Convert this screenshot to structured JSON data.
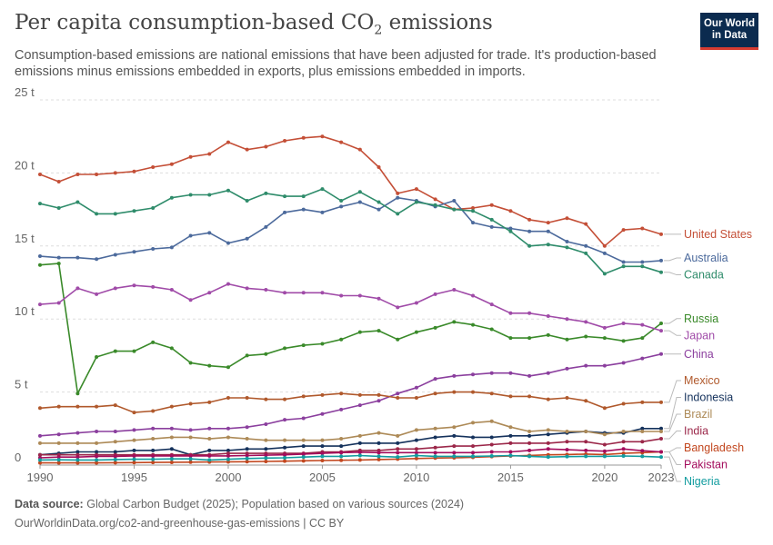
{
  "header": {
    "title_main": "Per capita consumption-based CO",
    "title_sub": "2",
    "title_end": " emissions",
    "subtitle": "Consumption-based emissions are national emissions that have been adjusted for trade. It's production-based emissions minus emissions embedded in exports, plus emissions embedded in imports.",
    "logo_line1": "Our World",
    "logo_line2": "in Data"
  },
  "footer": {
    "source_label": "Data source:",
    "source_text": "Global Carbon Budget (2025); Population based on various sources (2024)",
    "link_text": "OurWorldinData.org/co2-and-greenhouse-gas-emissions | CC BY"
  },
  "chart_data": {
    "type": "line",
    "title": "Per capita consumption-based CO2 emissions",
    "xlabel": "",
    "ylabel": "",
    "xlim": [
      1990,
      2023
    ],
    "ylim": [
      0,
      25
    ],
    "x_ticks": [
      1990,
      1995,
      2000,
      2005,
      2010,
      2015,
      2020,
      2023
    ],
    "y_ticks": [
      {
        "value": 0,
        "label": "0"
      },
      {
        "value": 5,
        "label": "5 t"
      },
      {
        "value": 10,
        "label": "10 t"
      },
      {
        "value": 15,
        "label": "15 t"
      },
      {
        "value": 20,
        "label": "20 t"
      },
      {
        "value": 25,
        "label": "25 t"
      }
    ],
    "grid": true,
    "legend": "labels at right end of lines",
    "x": [
      1990,
      1991,
      1992,
      1993,
      1994,
      1995,
      1996,
      1997,
      1998,
      1999,
      2000,
      2001,
      2002,
      2003,
      2004,
      2005,
      2006,
      2007,
      2008,
      2009,
      2010,
      2011,
      2012,
      2013,
      2014,
      2015,
      2016,
      2017,
      2018,
      2019,
      2020,
      2021,
      2022,
      2023
    ],
    "series": [
      {
        "name": "United States",
        "color": "#c44f37",
        "values": [
          19.9,
          19.4,
          19.9,
          19.9,
          20.0,
          20.1,
          20.4,
          20.6,
          21.1,
          21.3,
          22.1,
          21.6,
          21.8,
          22.2,
          22.4,
          22.5,
          22.1,
          21.6,
          20.4,
          18.6,
          18.9,
          18.2,
          17.5,
          17.6,
          17.8,
          17.4,
          16.8,
          16.6,
          16.9,
          16.5,
          15.0,
          16.1,
          16.2,
          15.8
        ]
      },
      {
        "name": "Australia",
        "color": "#4c6a9c",
        "values": [
          14.3,
          14.2,
          14.2,
          14.1,
          14.4,
          14.6,
          14.8,
          14.9,
          15.7,
          15.9,
          15.2,
          15.5,
          16.3,
          17.3,
          17.5,
          17.3,
          17.7,
          18.0,
          17.5,
          18.3,
          18.1,
          17.7,
          18.1,
          16.6,
          16.3,
          16.2,
          16.0,
          16.0,
          15.3,
          15.0,
          14.5,
          13.9,
          13.9,
          14.0
        ]
      },
      {
        "name": "Canada",
        "color": "#2f8c6b",
        "values": [
          17.9,
          17.6,
          18.0,
          17.2,
          17.2,
          17.4,
          17.6,
          18.3,
          18.5,
          18.5,
          18.8,
          18.1,
          18.6,
          18.4,
          18.4,
          18.9,
          18.1,
          18.7,
          18.0,
          17.2,
          18.0,
          17.8,
          17.5,
          17.4,
          16.8,
          16.0,
          15.0,
          15.1,
          14.9,
          14.5,
          13.1,
          13.6,
          13.6,
          13.2
        ]
      },
      {
        "name": "Russia",
        "color": "#3a8a2a",
        "values": [
          13.7,
          13.8,
          4.9,
          7.4,
          7.8,
          7.8,
          8.4,
          8.0,
          7.0,
          6.8,
          6.7,
          7.5,
          7.6,
          8.0,
          8.2,
          8.3,
          8.6,
          9.1,
          9.2,
          8.6,
          9.1,
          9.4,
          9.8,
          9.6,
          9.3,
          8.7,
          8.7,
          8.9,
          8.6,
          8.8,
          8.7,
          8.5,
          8.7,
          9.7
        ]
      },
      {
        "name": "Japan",
        "color": "#a04ba8",
        "values": [
          11.0,
          11.1,
          12.1,
          11.7,
          12.1,
          12.3,
          12.2,
          12.0,
          11.3,
          11.8,
          12.4,
          12.1,
          12.0,
          11.8,
          11.8,
          11.8,
          11.6,
          11.6,
          11.4,
          10.8,
          11.1,
          11.7,
          12.0,
          11.6,
          11.0,
          10.4,
          10.4,
          10.2,
          10.0,
          9.8,
          9.4,
          9.7,
          9.6,
          9.2
        ]
      },
      {
        "name": "China",
        "color": "#8b3f9e",
        "values": [
          2.0,
          2.1,
          2.2,
          2.3,
          2.3,
          2.4,
          2.5,
          2.5,
          2.4,
          2.5,
          2.5,
          2.6,
          2.8,
          3.1,
          3.2,
          3.5,
          3.8,
          4.1,
          4.4,
          4.9,
          5.3,
          5.9,
          6.1,
          6.2,
          6.3,
          6.3,
          6.1,
          6.3,
          6.6,
          6.8,
          6.8,
          7.0,
          7.3,
          7.6
        ]
      },
      {
        "name": "Mexico",
        "color": "#b0592c",
        "values": [
          3.9,
          4.0,
          4.0,
          4.0,
          4.1,
          3.6,
          3.7,
          4.0,
          4.2,
          4.3,
          4.6,
          4.6,
          4.5,
          4.5,
          4.7,
          4.8,
          4.9,
          4.8,
          4.8,
          4.6,
          4.6,
          4.9,
          5.0,
          5.0,
          4.9,
          4.7,
          4.7,
          4.5,
          4.6,
          4.4,
          3.9,
          4.2,
          4.3,
          4.3
        ]
      },
      {
        "name": "Indonesia",
        "color": "#15325c",
        "values": [
          0.7,
          0.8,
          0.9,
          0.9,
          0.9,
          1.0,
          1.0,
          1.1,
          0.7,
          1.0,
          1.0,
          1.1,
          1.1,
          1.2,
          1.3,
          1.3,
          1.3,
          1.5,
          1.5,
          1.5,
          1.7,
          1.9,
          2.0,
          1.9,
          1.9,
          2.0,
          2.0,
          2.1,
          2.2,
          2.3,
          2.2,
          2.2,
          2.5,
          2.5
        ]
      },
      {
        "name": "Brazil",
        "color": "#ad8a57",
        "values": [
          1.5,
          1.5,
          1.5,
          1.5,
          1.6,
          1.7,
          1.8,
          1.9,
          1.9,
          1.8,
          1.9,
          1.8,
          1.7,
          1.7,
          1.7,
          1.7,
          1.8,
          2.0,
          2.2,
          2.0,
          2.4,
          2.5,
          2.6,
          2.9,
          3.0,
          2.6,
          2.3,
          2.4,
          2.3,
          2.3,
          2.1,
          2.3,
          2.3,
          2.3
        ]
      },
      {
        "name": "India",
        "color": "#9b2749",
        "values": [
          0.7,
          0.7,
          0.7,
          0.7,
          0.7,
          0.7,
          0.7,
          0.7,
          0.7,
          0.7,
          0.8,
          0.8,
          0.8,
          0.8,
          0.8,
          0.9,
          0.9,
          1.0,
          1.0,
          1.1,
          1.1,
          1.2,
          1.3,
          1.3,
          1.4,
          1.5,
          1.5,
          1.5,
          1.6,
          1.6,
          1.4,
          1.6,
          1.6,
          1.8
        ]
      },
      {
        "name": "Bangladesh",
        "color": "#c2471f",
        "values": [
          0.15,
          0.15,
          0.15,
          0.15,
          0.16,
          0.17,
          0.18,
          0.19,
          0.2,
          0.21,
          0.22,
          0.23,
          0.25,
          0.27,
          0.29,
          0.31,
          0.33,
          0.35,
          0.38,
          0.41,
          0.45,
          0.48,
          0.5,
          0.53,
          0.58,
          0.62,
          0.66,
          0.7,
          0.72,
          0.75,
          0.72,
          0.8,
          0.85,
          0.9
        ]
      },
      {
        "name": "Pakistan",
        "color": "#a30c5c",
        "values": [
          0.5,
          0.55,
          0.55,
          0.6,
          0.6,
          0.62,
          0.62,
          0.63,
          0.63,
          0.63,
          0.63,
          0.65,
          0.68,
          0.7,
          0.75,
          0.8,
          0.85,
          0.88,
          0.85,
          0.85,
          0.85,
          0.85,
          0.85,
          0.85,
          0.9,
          0.9,
          1.0,
          1.1,
          1.05,
          1.0,
          0.95,
          1.1,
          0.98,
          0.9
        ]
      },
      {
        "name": "Nigeria",
        "color": "#129c9f",
        "values": [
          0.35,
          0.36,
          0.35,
          0.35,
          0.38,
          0.4,
          0.4,
          0.42,
          0.42,
          0.35,
          0.4,
          0.45,
          0.48,
          0.5,
          0.55,
          0.6,
          0.6,
          0.65,
          0.6,
          0.55,
          0.65,
          0.6,
          0.6,
          0.6,
          0.62,
          0.65,
          0.6,
          0.55,
          0.58,
          0.6,
          0.6,
          0.62,
          0.6,
          0.55
        ]
      }
    ]
  }
}
